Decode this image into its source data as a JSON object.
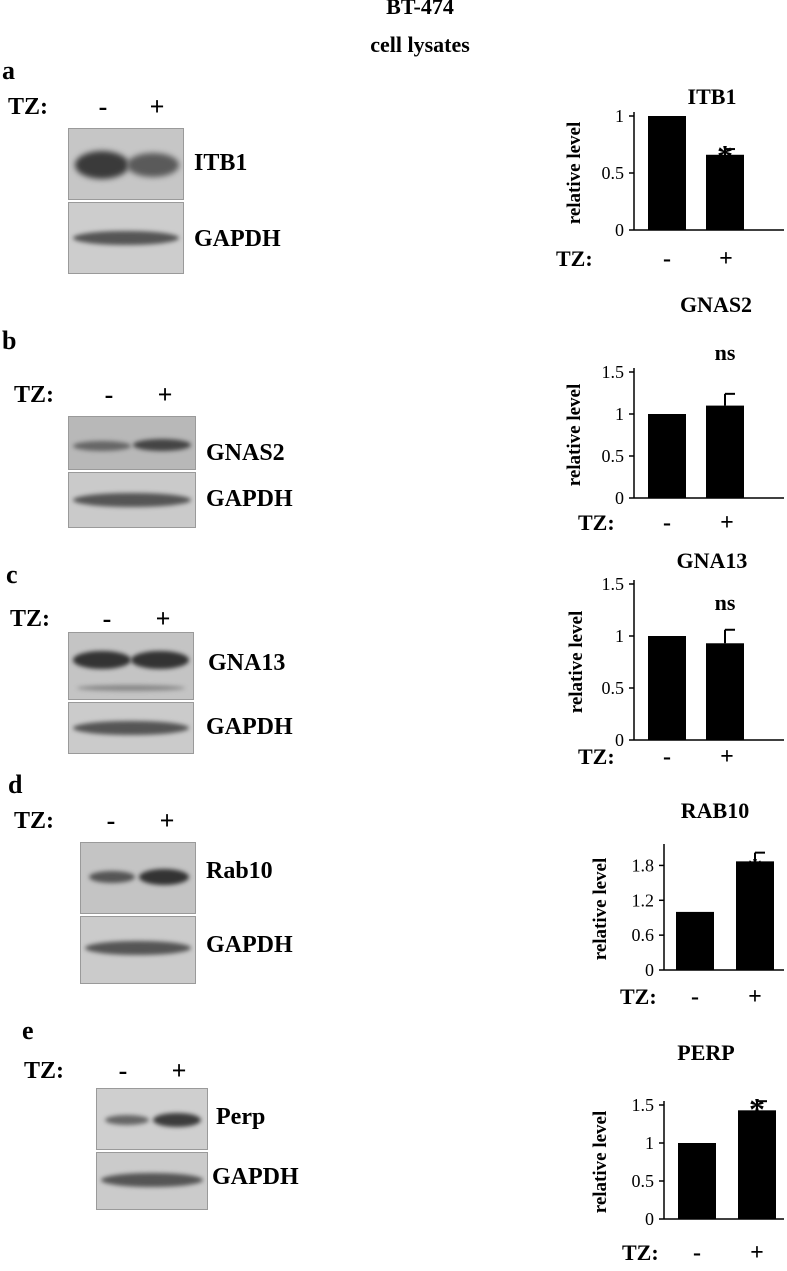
{
  "header": {
    "line1": "BT-474",
    "line2": "cell lysates"
  },
  "treatment_label": "TZ:",
  "lane_labels": [
    "-",
    "+"
  ],
  "panels": [
    {
      "letter": "a",
      "protein": "ITB1",
      "loading": "GAPDH"
    },
    {
      "letter": "b",
      "protein": "GNAS2",
      "loading": "GAPDH"
    },
    {
      "letter": "c",
      "protein": "GNA13",
      "loading": "GAPDH"
    },
    {
      "letter": "d",
      "protein": "Rab10",
      "loading": "GAPDH"
    },
    {
      "letter": "e",
      "protein": "Perp",
      "loading": "GAPDH"
    }
  ],
  "chart_data": [
    {
      "type": "bar",
      "title": "ITB1",
      "ylabel": "relative level",
      "xlabel": "TZ:",
      "categories": [
        "-",
        "+"
      ],
      "values": [
        1.0,
        0.66
      ],
      "errors": [
        0,
        0.05
      ],
      "ylim": [
        0,
        1
      ],
      "yticks": [
        "0",
        "0.5",
        "1"
      ],
      "annotation": "*"
    },
    {
      "type": "bar",
      "title": "GNAS2",
      "ylabel": "relative level",
      "xlabel": "TZ:",
      "categories": [
        "-",
        "+"
      ],
      "values": [
        1.0,
        1.1
      ],
      "errors": [
        0,
        0.14
      ],
      "ylim": [
        0,
        1.5
      ],
      "yticks": [
        "0",
        "0.5",
        "1",
        "1.5"
      ],
      "annotation": "ns"
    },
    {
      "type": "bar",
      "title": "GNA13",
      "ylabel": "relative level",
      "xlabel": "TZ:",
      "categories": [
        "-",
        "+"
      ],
      "values": [
        1.0,
        0.93
      ],
      "errors": [
        0,
        0.13
      ],
      "ylim": [
        0,
        1.5
      ],
      "yticks": [
        "0",
        "0.5",
        "1",
        "1.5"
      ],
      "annotation": "ns"
    },
    {
      "type": "bar",
      "title": "RAB10",
      "ylabel": "relative level",
      "xlabel": "TZ:",
      "categories": [
        "-",
        "+"
      ],
      "values": [
        1.0,
        1.87
      ],
      "errors": [
        0,
        0.15
      ],
      "ylim": [
        0,
        2.1
      ],
      "yticks": [
        "0",
        "0.6",
        "1.2",
        "1.8"
      ],
      "annotation": "*"
    },
    {
      "type": "bar",
      "title": "PERP",
      "ylabel": "relative level",
      "xlabel": "TZ:",
      "categories": [
        "-",
        "+"
      ],
      "values": [
        1.0,
        1.43
      ],
      "errors": [
        0,
        0.12
      ],
      "ylim": [
        0,
        1.5
      ],
      "yticks": [
        "0",
        "0.5",
        "1",
        "1.5"
      ],
      "annotation": "*"
    }
  ]
}
